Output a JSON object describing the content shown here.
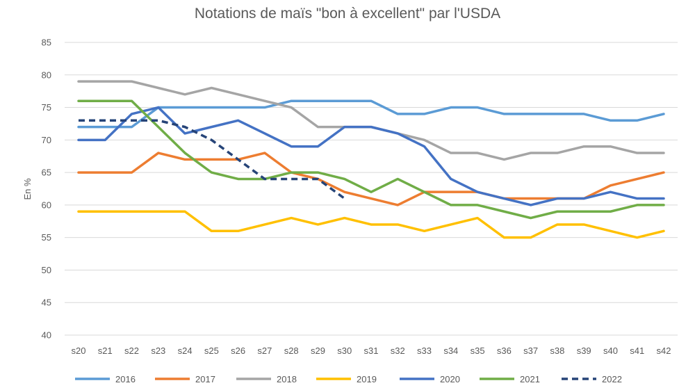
{
  "chart_data": {
    "type": "line",
    "title": "Notations de maïs \"bon à excellent\" par l'USDA",
    "xlabel": "",
    "ylabel": "En %",
    "ylim": [
      40,
      85
    ],
    "yticks": [
      40,
      45,
      50,
      55,
      60,
      65,
      70,
      75,
      80,
      85
    ],
    "grid": "horizontal",
    "legend_position": "bottom",
    "categories": [
      "s20",
      "s21",
      "s22",
      "s23",
      "s24",
      "s25",
      "s26",
      "s27",
      "s28",
      "s29",
      "s30",
      "s31",
      "s32",
      "s33",
      "s34",
      "s35",
      "s36",
      "s37",
      "s38",
      "s39",
      "s40",
      "s41",
      "s42"
    ],
    "series": [
      {
        "name": "2016",
        "color": "#5B9BD5",
        "dashed": false,
        "values": [
          72,
          72,
          72,
          75,
          75,
          75,
          75,
          75,
          76,
          76,
          76,
          76,
          74,
          74,
          75,
          75,
          74,
          74,
          74,
          74,
          73,
          73,
          74
        ]
      },
      {
        "name": "2017",
        "color": "#ED7D31",
        "dashed": false,
        "values": [
          65,
          65,
          65,
          68,
          67,
          67,
          67,
          68,
          65,
          64,
          62,
          61,
          60,
          62,
          62,
          62,
          61,
          61,
          61,
          61,
          63,
          64,
          65
        ]
      },
      {
        "name": "2018",
        "color": "#A5A5A5",
        "dashed": false,
        "values": [
          79,
          79,
          79,
          78,
          77,
          78,
          77,
          76,
          75,
          72,
          72,
          72,
          71,
          70,
          68,
          68,
          67,
          68,
          68,
          69,
          69,
          68,
          68
        ]
      },
      {
        "name": "2019",
        "color": "#FFC000",
        "dashed": false,
        "values": [
          59,
          59,
          59,
          59,
          59,
          56,
          56,
          57,
          58,
          57,
          58,
          57,
          57,
          56,
          57,
          58,
          55,
          55,
          57,
          57,
          56,
          55,
          56
        ]
      },
      {
        "name": "2020",
        "color": "#4472C4",
        "dashed": false,
        "values": [
          70,
          70,
          74,
          75,
          71,
          72,
          73,
          71,
          69,
          69,
          72,
          72,
          71,
          69,
          64,
          62,
          61,
          60,
          61,
          61,
          62,
          61,
          61
        ]
      },
      {
        "name": "2021",
        "color": "#70AD47",
        "dashed": false,
        "values": [
          76,
          76,
          76,
          72,
          68,
          65,
          64,
          64,
          65,
          65,
          64,
          62,
          64,
          62,
          60,
          60,
          59,
          58,
          59,
          59,
          59,
          60,
          60
        ]
      },
      {
        "name": "2022",
        "color": "#264478",
        "dashed": true,
        "values": [
          73,
          73,
          73,
          73,
          72,
          70,
          67,
          64,
          64,
          64,
          61,
          null,
          null,
          null,
          null,
          null,
          null,
          null,
          null,
          null,
          null,
          null,
          null
        ]
      }
    ]
  }
}
